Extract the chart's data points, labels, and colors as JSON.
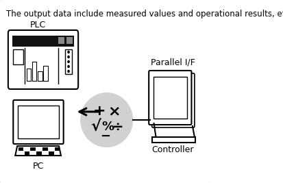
{
  "title_text": "The output data include measured values and operational results, etc.",
  "background_color": "#ffffff",
  "border_color": "#a8c8e8",
  "border_linewidth": 2.0,
  "plc_label": "PLC",
  "pc_label": "PC",
  "parallel_if_label": "Parallel I/F",
  "controller_label": "Controller",
  "ellipse_color": "#cccccc",
  "ellipse_alpha": 0.9,
  "text_color": "#000000",
  "font_size_title": 8.5,
  "font_size_label": 9
}
